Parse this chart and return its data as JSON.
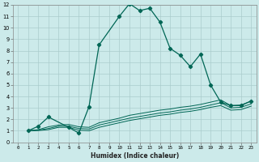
{
  "xlabel": "Humidex (Indice chaleur)",
  "bg_color": "#cceaea",
  "grid_color": "#aacccc",
  "line_color": "#006655",
  "xlim": [
    -0.5,
    23.5
  ],
  "ylim": [
    0,
    12
  ],
  "xticks": [
    0,
    1,
    2,
    3,
    4,
    5,
    6,
    7,
    8,
    9,
    10,
    11,
    12,
    13,
    14,
    15,
    16,
    17,
    18,
    19,
    20,
    21,
    22,
    23
  ],
  "yticks": [
    0,
    1,
    2,
    3,
    4,
    5,
    6,
    7,
    8,
    9,
    10,
    11,
    12
  ],
  "main_series": {
    "x": [
      1,
      2,
      3,
      5,
      6,
      7,
      8,
      10,
      11,
      12,
      13,
      14,
      15,
      16,
      17,
      18,
      19,
      20,
      21,
      22,
      23
    ],
    "y": [
      1.0,
      1.4,
      2.2,
      1.3,
      0.8,
      3.1,
      8.5,
      11.0,
      12.1,
      11.5,
      11.7,
      10.5,
      8.2,
      7.6,
      6.6,
      7.7,
      5.0,
      3.5,
      3.2,
      3.2,
      3.6
    ]
  },
  "flat_series": [
    {
      "x": [
        1,
        2,
        3,
        4,
        5,
        6,
        7,
        8,
        9,
        10,
        11,
        12,
        13,
        14,
        15,
        16,
        17,
        18,
        19,
        20,
        21,
        22,
        23
      ],
      "y": [
        1.0,
        1.1,
        1.35,
        1.5,
        1.55,
        1.35,
        1.3,
        1.7,
        1.9,
        2.1,
        2.35,
        2.5,
        2.65,
        2.8,
        2.9,
        3.05,
        3.15,
        3.3,
        3.5,
        3.7,
        3.2,
        3.25,
        3.6
      ]
    },
    {
      "x": [
        1,
        2,
        3,
        4,
        5,
        6,
        7,
        8,
        9,
        10,
        11,
        12,
        13,
        14,
        15,
        16,
        17,
        18,
        19,
        20,
        21,
        22,
        23
      ],
      "y": [
        1.0,
        1.05,
        1.2,
        1.4,
        1.4,
        1.2,
        1.15,
        1.5,
        1.7,
        1.9,
        2.1,
        2.25,
        2.4,
        2.55,
        2.65,
        2.8,
        2.9,
        3.05,
        3.25,
        3.45,
        3.0,
        3.05,
        3.35
      ]
    },
    {
      "x": [
        1,
        2,
        3,
        4,
        5,
        6,
        7,
        8,
        9,
        10,
        11,
        12,
        13,
        14,
        15,
        16,
        17,
        18,
        19,
        20,
        21,
        22,
        23
      ],
      "y": [
        1.0,
        1.02,
        1.1,
        1.3,
        1.3,
        1.05,
        1.0,
        1.3,
        1.5,
        1.7,
        1.9,
        2.05,
        2.2,
        2.35,
        2.45,
        2.6,
        2.7,
        2.85,
        3.05,
        3.2,
        2.8,
        2.85,
        3.15
      ]
    }
  ]
}
